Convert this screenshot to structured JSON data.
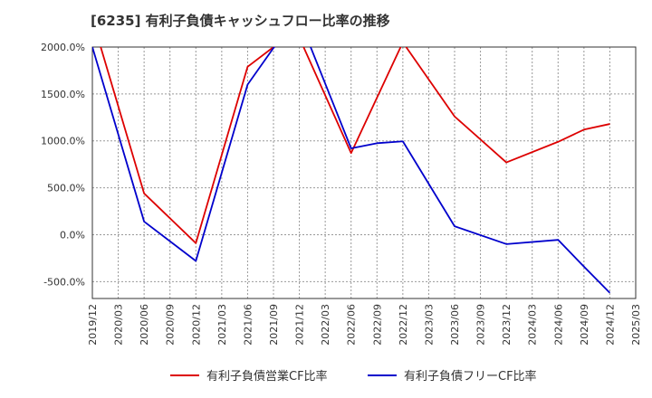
{
  "chart_data": {
    "type": "line",
    "title": "[6235]  有利子負債キャッシュフロー比率の推移",
    "x_ticks": [
      "2019/12",
      "2020/03",
      "2020/06",
      "2020/09",
      "2020/12",
      "2021/03",
      "2021/06",
      "2021/09",
      "2021/12",
      "2022/03",
      "2022/06",
      "2022/09",
      "2022/12",
      "2023/03",
      "2023/06",
      "2023/09",
      "2023/12",
      "2024/03",
      "2024/06",
      "2024/09",
      "2024/12",
      "2025/03"
    ],
    "y_ticks": [
      "-500.0%",
      "0.0%",
      "500.0%",
      "1000.0%",
      "1500.0%",
      "2000.0%"
    ],
    "ylim": [
      -680,
      2000
    ],
    "grid": true,
    "legend_position": "bottom",
    "series": [
      {
        "name": "有利子負債営業CF比率",
        "color": "#dd0000",
        "x": [
          "2019/12",
          "2020/06",
          "2020/12",
          "2021/06",
          "2021/09",
          "2021/12",
          "2022/06",
          "2022/12",
          "2023/06",
          "2023/12",
          "2024/06",
          "2024/09",
          "2024/12"
        ],
        "values": [
          2300,
          440,
          -90,
          1790,
          2000,
          2100,
          870,
          2050,
          1260,
          770,
          990,
          1120,
          1180
        ]
      },
      {
        "name": "有利子負債フリーCF比率",
        "color": "#0000cc",
        "x": [
          "2019/12",
          "2020/06",
          "2020/12",
          "2021/06",
          "2021/09",
          "2021/12",
          "2022/06",
          "2022/09",
          "2022/12",
          "2023/06",
          "2023/12",
          "2024/06",
          "2024/09",
          "2024/12"
        ],
        "values": [
          2000,
          140,
          -280,
          1600,
          1990,
          2300,
          920,
          975,
          995,
          90,
          -100,
          -55,
          -340,
          -620
        ]
      }
    ]
  }
}
